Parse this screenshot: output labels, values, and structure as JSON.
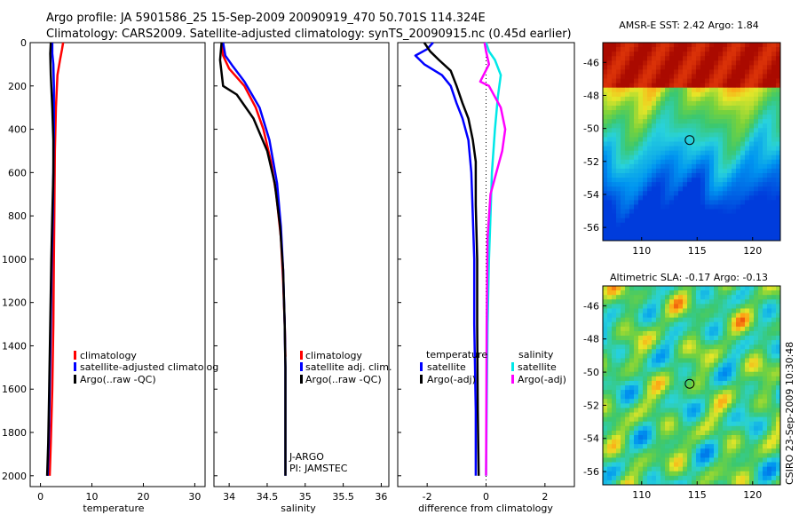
{
  "title": {
    "line1": "Argo profile: JA 5901586_25 15-Sep-2009 20090919_470 50.701S 114.324E",
    "line2": "Climatology: CARS2009. Satellite-adjusted climatology: synTS_20090915.nc (0.45d earlier)"
  },
  "credit": "CSIRO 23-Sep-2009 10:30:48",
  "colors": {
    "red": "#ff0000",
    "blue": "#0000ff",
    "black": "#000000",
    "cyan": "#00e8e8",
    "magenta": "#ff00ff"
  },
  "chart_data": [
    {
      "type": "line",
      "name": "temperature-panel",
      "xlabel": "temperature",
      "ylabel": "",
      "xlim": [
        -2,
        32
      ],
      "ylim": [
        2050,
        0
      ],
      "xticks": [
        "0",
        "10",
        "20",
        "30"
      ],
      "xtick_values": [
        0,
        10,
        20,
        30
      ],
      "yticks": [
        "0",
        "200",
        "400",
        "600",
        "800",
        "1000",
        "1200",
        "1400",
        "1600",
        "1800",
        "2000"
      ],
      "ytick_values": [
        0,
        200,
        400,
        600,
        800,
        1000,
        1200,
        1400,
        1600,
        1800,
        2000
      ],
      "series": [
        {
          "name": "climatology",
          "color": "red",
          "x": [
            4.4,
            4.2,
            3.8,
            3.3,
            3.0,
            2.8,
            2.7,
            2.6,
            2.5,
            2.3,
            2.0,
            1.8
          ],
          "y": [
            0,
            30,
            80,
            150,
            300,
            500,
            800,
            1000,
            1300,
            1600,
            1850,
            2000
          ]
        },
        {
          "name": "satellite-adjusted climatology",
          "color": "blue",
          "x": [
            2.3,
            2.3,
            2.5,
            2.6,
            2.6,
            2.5,
            2.4,
            2.2,
            2.0,
            1.8,
            1.6,
            1.4
          ],
          "y": [
            0,
            50,
            100,
            200,
            400,
            600,
            800,
            1000,
            1300,
            1600,
            1850,
            2000
          ]
        },
        {
          "name": "Argo(..raw -QC)",
          "color": "black",
          "x": [
            2.0,
            1.9,
            2.0,
            2.3,
            2.5,
            2.5,
            2.3,
            2.1,
            1.9,
            1.7,
            1.5,
            1.3
          ],
          "y": [
            0,
            50,
            150,
            300,
            450,
            600,
            800,
            1000,
            1300,
            1600,
            1850,
            2000
          ]
        }
      ],
      "legend": {
        "placement": "lower-center",
        "entries": [
          "climatology",
          "satellite-adjusted climatolog",
          "Argo(..raw -QC)"
        ]
      }
    },
    {
      "type": "line",
      "name": "salinity-panel",
      "xlabel": "salinity",
      "xlim": [
        33.8,
        36.1
      ],
      "ylim": [
        2050,
        0
      ],
      "xticks": [
        "34",
        "34.5",
        "35",
        "35.5",
        "36"
      ],
      "xtick_values": [
        34,
        34.5,
        35,
        35.5,
        36
      ],
      "series": [
        {
          "name": "climatology",
          "color": "red",
          "x": [
            33.9,
            33.92,
            34.0,
            34.2,
            34.35,
            34.45,
            34.55,
            34.62,
            34.68,
            34.71,
            34.73,
            34.74
          ],
          "y": [
            0,
            60,
            120,
            200,
            300,
            400,
            550,
            700,
            900,
            1100,
            1300,
            1450
          ]
        },
        {
          "name": "satellite adj. clim.",
          "color": "blue",
          "x": [
            33.92,
            33.95,
            34.05,
            34.2,
            34.4,
            34.53,
            34.63,
            34.68,
            34.71,
            34.73,
            34.74,
            34.74,
            34.74
          ],
          "y": [
            0,
            60,
            110,
            180,
            300,
            450,
            650,
            850,
            1050,
            1300,
            1500,
            1800,
            2000
          ]
        },
        {
          "name": "Argo(..raw -QC)",
          "color": "black",
          "x": [
            33.9,
            33.88,
            33.92,
            34.1,
            34.32,
            34.5,
            34.6,
            34.67,
            34.71,
            34.73,
            34.74,
            34.74,
            34.74
          ],
          "y": [
            0,
            80,
            200,
            240,
            350,
            500,
            650,
            850,
            1050,
            1300,
            1500,
            1800,
            2000
          ]
        }
      ],
      "legend": {
        "placement": "lower-right",
        "entries": [
          "climatology",
          "satellite adj. clim.",
          "Argo(..raw -QC)"
        ]
      },
      "annotations": [
        "J-ARGO",
        "PI: JAMSTEC"
      ]
    },
    {
      "type": "line",
      "name": "difference-panel",
      "xlabel": "difference from climatology",
      "xlim": [
        -3,
        3
      ],
      "ylim": [
        2050,
        0
      ],
      "xticks": [
        "-2",
        "0",
        "2"
      ],
      "xtick_values": [
        -2,
        0,
        2
      ],
      "zero_line": "dotted",
      "series": [
        {
          "name": "temperature satellite",
          "color": "blue",
          "x": [
            -1.8,
            -2.0,
            -2.4,
            -2.1,
            -1.5,
            -1.2,
            -1.0,
            -0.8,
            -0.6,
            -0.5,
            -0.45,
            -0.4,
            -0.4,
            -0.35,
            -0.35
          ],
          "y": [
            0,
            30,
            60,
            100,
            150,
            200,
            280,
            350,
            450,
            600,
            800,
            1000,
            1300,
            1700,
            2000
          ]
        },
        {
          "name": "temperature Argo(-adj)",
          "color": "black",
          "x": [
            -2.1,
            -1.9,
            -1.6,
            -1.2,
            -1.0,
            -0.8,
            -0.6,
            -0.45,
            -0.35,
            -0.35,
            -0.3,
            -0.3,
            -0.28,
            -0.25
          ],
          "y": [
            0,
            40,
            80,
            130,
            200,
            280,
            350,
            450,
            550,
            750,
            1000,
            1300,
            1700,
            2000
          ]
        },
        {
          "name": "salinity satellite",
          "color": "cyan",
          "x": [
            0.0,
            0.1,
            0.3,
            0.5,
            0.4,
            0.3,
            0.2,
            0.15,
            0.1,
            0.05,
            0.02,
            0.0
          ],
          "y": [
            0,
            40,
            80,
            150,
            250,
            400,
            600,
            800,
            1000,
            1300,
            1700,
            2000
          ]
        },
        {
          "name": "salinity Argo(-adj)",
          "color": "magenta",
          "x": [
            -0.05,
            0.0,
            0.1,
            -0.2,
            0.1,
            0.5,
            0.65,
            0.55,
            0.35,
            0.15,
            0.05,
            0.02,
            0.0
          ],
          "y": [
            0,
            40,
            100,
            180,
            200,
            300,
            400,
            500,
            600,
            700,
            900,
            1300,
            2000
          ]
        }
      ],
      "legend": {
        "placement": "lower-center",
        "group_titles": [
          "temperature",
          "salinity"
        ],
        "entries": [
          "satellite",
          "Argo(-adj)",
          "satellite",
          "Argo(-adj)"
        ]
      }
    },
    {
      "type": "heatmap",
      "name": "sst-map",
      "title": "AMSR-E SST: 2.42  Argo: 1.84",
      "xlim": [
        106.5,
        122.5
      ],
      "ylim": [
        -56.8,
        -44.8
      ],
      "xticks": [
        "110",
        "115",
        "120"
      ],
      "xtick_values": [
        110,
        115,
        120
      ],
      "yticks": [
        "-46",
        "-48",
        "-50",
        "-52",
        "-54",
        "-56"
      ],
      "ytick_values": [
        -46,
        -48,
        -50,
        -52,
        -54,
        -56
      ],
      "marker": {
        "lon": 114.324,
        "lat": -50.701
      }
    },
    {
      "type": "heatmap",
      "name": "sla-map",
      "title": "Altimetric SLA: -0.17  Argo: -0.13",
      "xlim": [
        106.5,
        122.5
      ],
      "ylim": [
        -56.8,
        -44.8
      ],
      "xticks": [
        "110",
        "115",
        "120"
      ],
      "xtick_values": [
        110,
        115,
        120
      ],
      "yticks": [
        "-46",
        "-48",
        "-50",
        "-52",
        "-54",
        "-56"
      ],
      "ytick_values": [
        -46,
        -48,
        -50,
        -52,
        -54,
        -56
      ],
      "marker": {
        "lon": 114.324,
        "lat": -50.701
      }
    }
  ]
}
